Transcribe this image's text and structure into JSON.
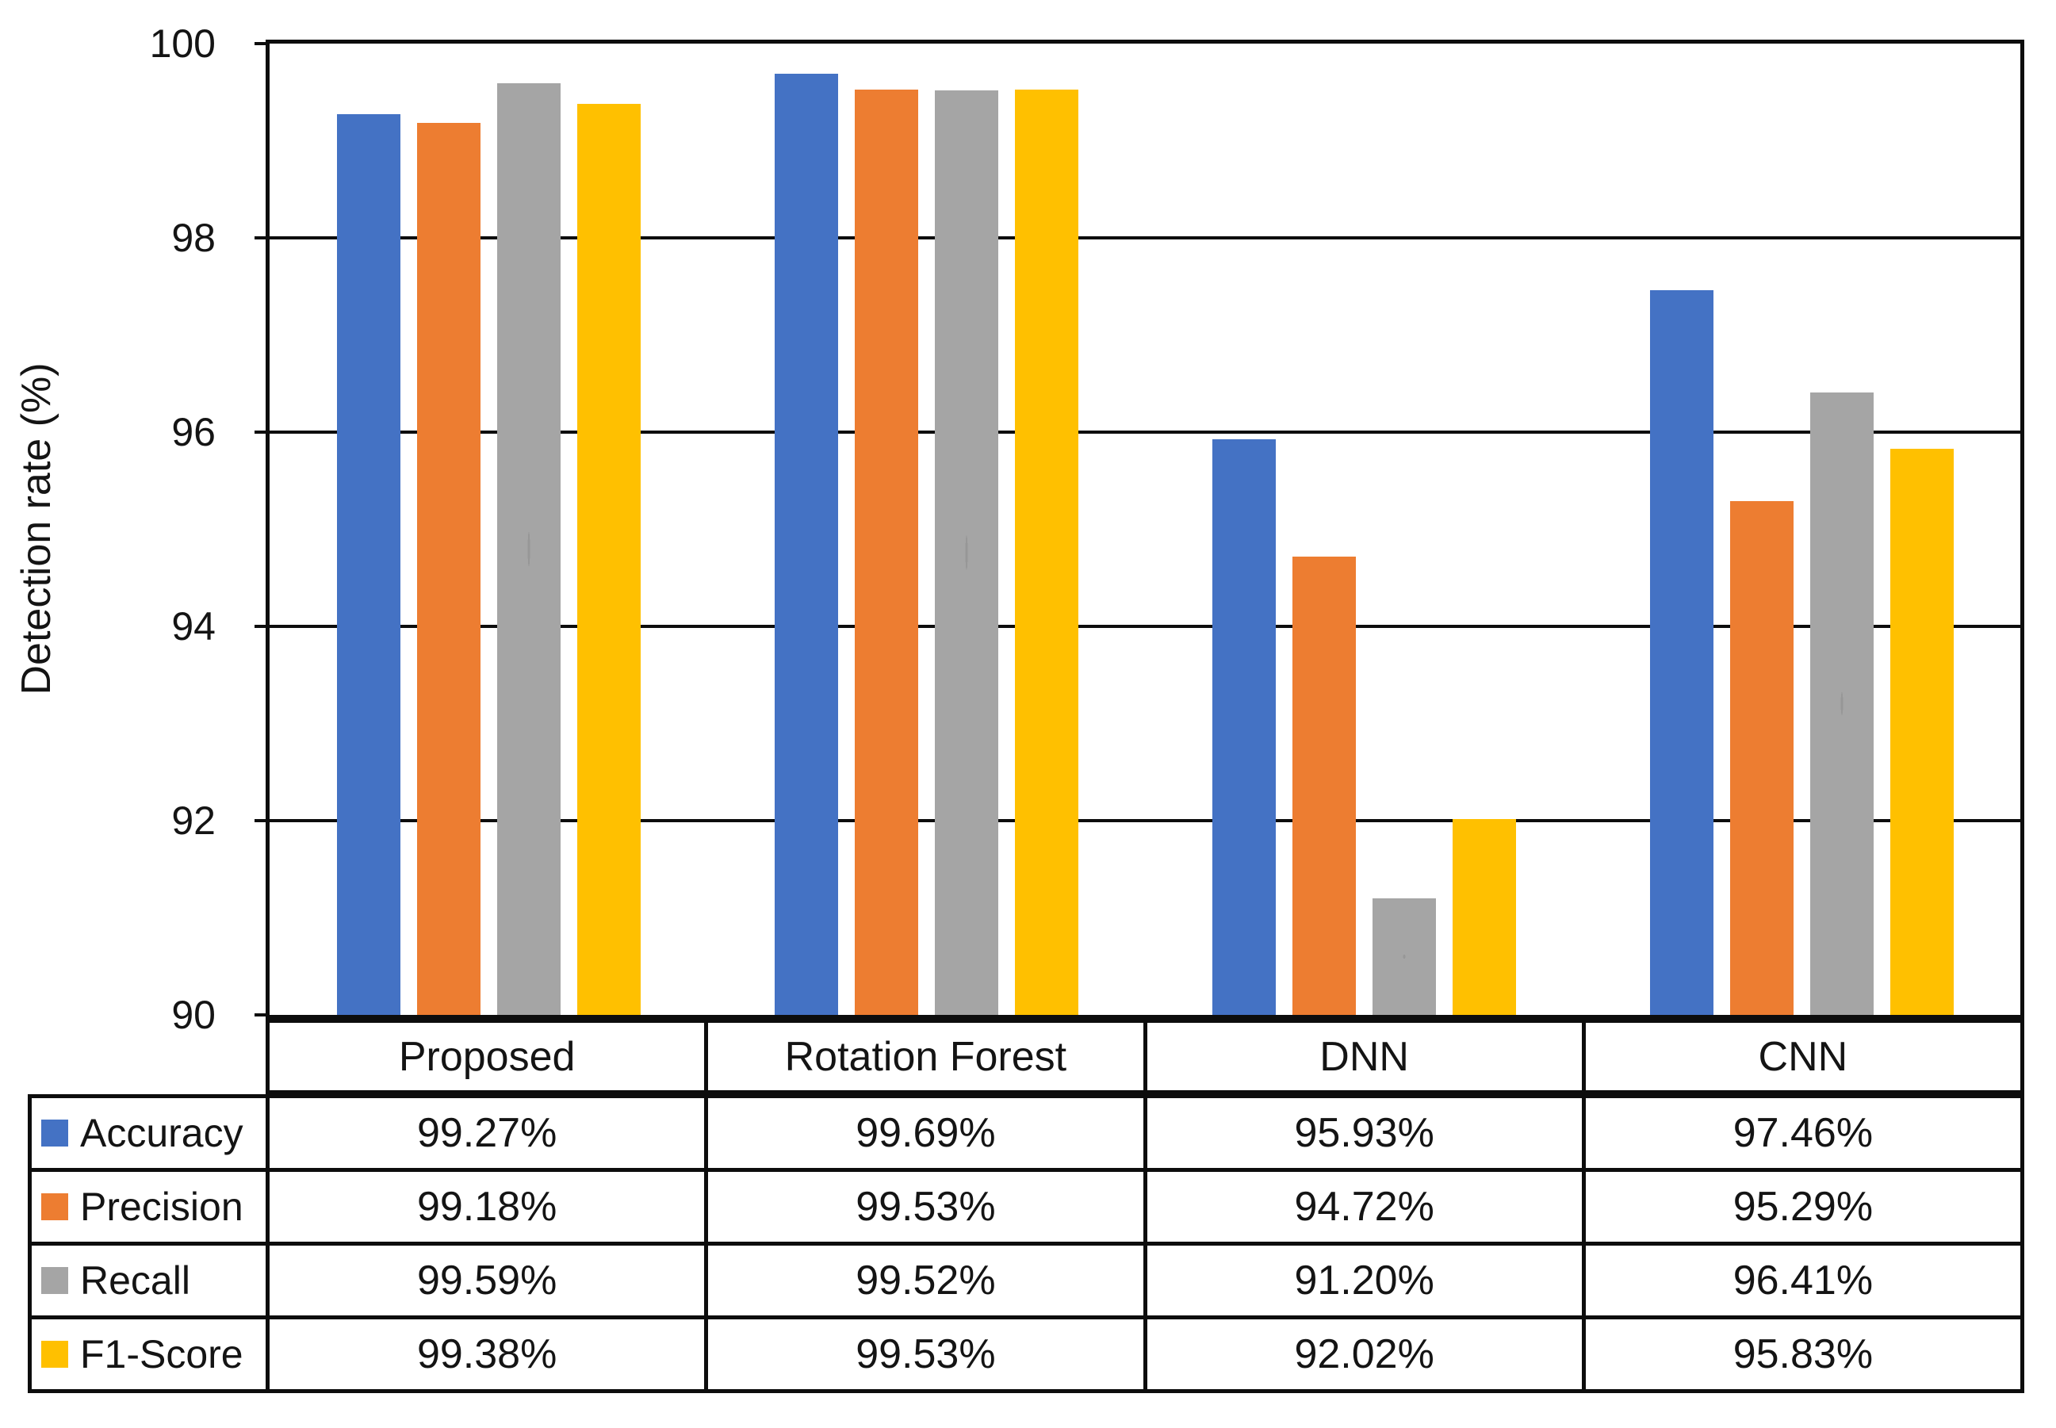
{
  "chart_data": {
    "type": "bar",
    "title": "",
    "ylabel": "Detection rate (%)",
    "ylim": [
      90,
      100
    ],
    "yticks": [
      100,
      98,
      96,
      94,
      92,
      90
    ],
    "grid": true,
    "legend_position": "table-left",
    "categories": [
      "Proposed",
      "Rotation Forest",
      "DNN",
      "CNN"
    ],
    "series": [
      {
        "name": "Accuracy",
        "color": "#4472C4",
        "values": [
          99.27,
          99.69,
          95.93,
          97.46
        ],
        "labels": [
          "99.27%",
          "99.69%",
          "95.93%",
          "97.46%"
        ]
      },
      {
        "name": "Precision",
        "color": "#ED7D31",
        "values": [
          99.18,
          99.53,
          94.72,
          95.29
        ],
        "labels": [
          "99.18%",
          "99.53%",
          "94.72%",
          "95.29%"
        ]
      },
      {
        "name": "Recall",
        "color": "#A5A5A5",
        "pattern": "dots",
        "values": [
          99.59,
          99.52,
          91.2,
          96.41
        ],
        "labels": [
          "99.59%",
          "99.52%",
          "91.20%",
          "96.41%"
        ]
      },
      {
        "name": "F1-Score",
        "color": "#FFC000",
        "values": [
          99.38,
          99.53,
          92.02,
          95.83
        ],
        "labels": [
          "99.38%",
          "99.53%",
          "92.02%",
          "95.83%"
        ]
      }
    ]
  }
}
